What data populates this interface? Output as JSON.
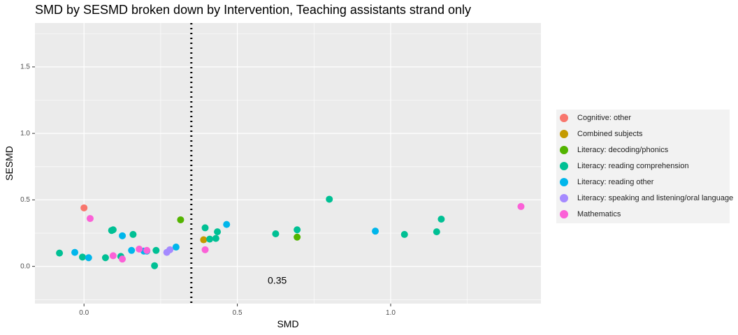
{
  "chart_data": {
    "type": "scatter",
    "title": "SMD by SESMD broken down by Intervention, Teaching assistants strand only",
    "xlabel": "SMD",
    "ylabel": "SESMD",
    "xlim": [
      -0.16,
      1.49
    ],
    "ylim": [
      -0.28,
      1.83
    ],
    "x_ticks": [
      0.0,
      0.5,
      1.0
    ],
    "x_tick_labels": [
      "0.0",
      "0.5",
      "1.0"
    ],
    "y_ticks": [
      0.0,
      0.5,
      1.0,
      1.5
    ],
    "y_tick_labels": [
      "0.0",
      "0.5",
      "1.0",
      "1.5"
    ],
    "grid": true,
    "background": "#ebebeb",
    "legend_position": "right",
    "reference_line": {
      "x": 0.35,
      "style": "dotted",
      "label": "0.35",
      "label_x": 0.63,
      "label_y": -0.11
    },
    "series": [
      {
        "name": "Cognitive: other",
        "color": "#F8766D",
        "points": [
          [
            0.0,
            0.44
          ]
        ]
      },
      {
        "name": "Combined subjects",
        "color": "#C49A00",
        "points": [
          [
            0.39,
            0.2
          ]
        ]
      },
      {
        "name": "Literacy: decoding/phonics",
        "color": "#53B400",
        "points": [
          [
            0.315,
            0.35
          ],
          [
            0.695,
            0.22
          ]
        ]
      },
      {
        "name": "Literacy: reading comprehension",
        "color": "#00C094",
        "points": [
          [
            -0.08,
            0.1
          ],
          [
            -0.005,
            0.07
          ],
          [
            0.07,
            0.065
          ],
          [
            0.09,
            0.27
          ],
          [
            0.095,
            0.275
          ],
          [
            0.12,
            0.075
          ],
          [
            0.16,
            0.24
          ],
          [
            0.23,
            0.005
          ],
          [
            0.235,
            0.12
          ],
          [
            0.395,
            0.29
          ],
          [
            0.41,
            0.205
          ],
          [
            0.43,
            0.21
          ],
          [
            0.435,
            0.26
          ],
          [
            0.625,
            0.245
          ],
          [
            0.695,
            0.275
          ],
          [
            0.8,
            0.505
          ],
          [
            1.045,
            0.24
          ],
          [
            1.15,
            0.26
          ],
          [
            1.165,
            0.355
          ]
        ]
      },
      {
        "name": "Literacy: reading other",
        "color": "#00B6EB",
        "points": [
          [
            -0.03,
            0.105
          ],
          [
            0.015,
            0.065
          ],
          [
            0.125,
            0.23
          ],
          [
            0.155,
            0.12
          ],
          [
            0.195,
            0.115
          ],
          [
            0.205,
            0.115
          ],
          [
            0.3,
            0.145
          ],
          [
            0.465,
            0.315
          ],
          [
            0.95,
            0.265
          ]
        ]
      },
      {
        "name": "Literacy: speaking and listening/oral language",
        "color": "#A58AFF",
        "points": [
          [
            0.27,
            0.105
          ],
          [
            0.28,
            0.125
          ]
        ]
      },
      {
        "name": "Mathematics",
        "color": "#FB61D7",
        "points": [
          [
            0.02,
            0.36
          ],
          [
            0.095,
            0.08
          ],
          [
            0.125,
            0.055
          ],
          [
            0.18,
            0.13
          ],
          [
            0.205,
            0.12
          ],
          [
            0.395,
            0.125
          ],
          [
            1.425,
            0.45
          ]
        ]
      }
    ]
  }
}
